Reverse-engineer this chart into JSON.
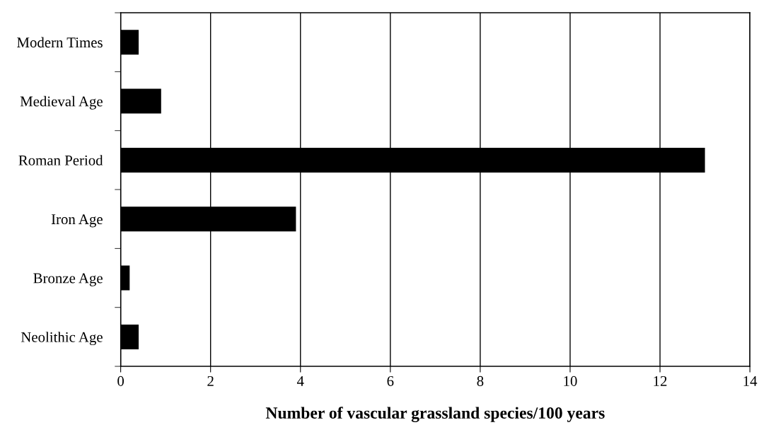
{
  "chart_data": {
    "type": "bar",
    "orientation": "horizontal",
    "xlabel": "Number of vascular grassland species/100 years",
    "categories": [
      "Modern Times",
      "Medieval Age",
      "Roman Period",
      "Iron Age",
      "Bronze Age",
      "Neolithic Age"
    ],
    "values": [
      0.4,
      0.9,
      13,
      3.9,
      0.2,
      0.4
    ],
    "color": "#000000",
    "xlim": [
      0,
      14
    ],
    "xticks": [
      0,
      2,
      4,
      6,
      8,
      10,
      12,
      14
    ],
    "grid": "x",
    "legend": false
  }
}
